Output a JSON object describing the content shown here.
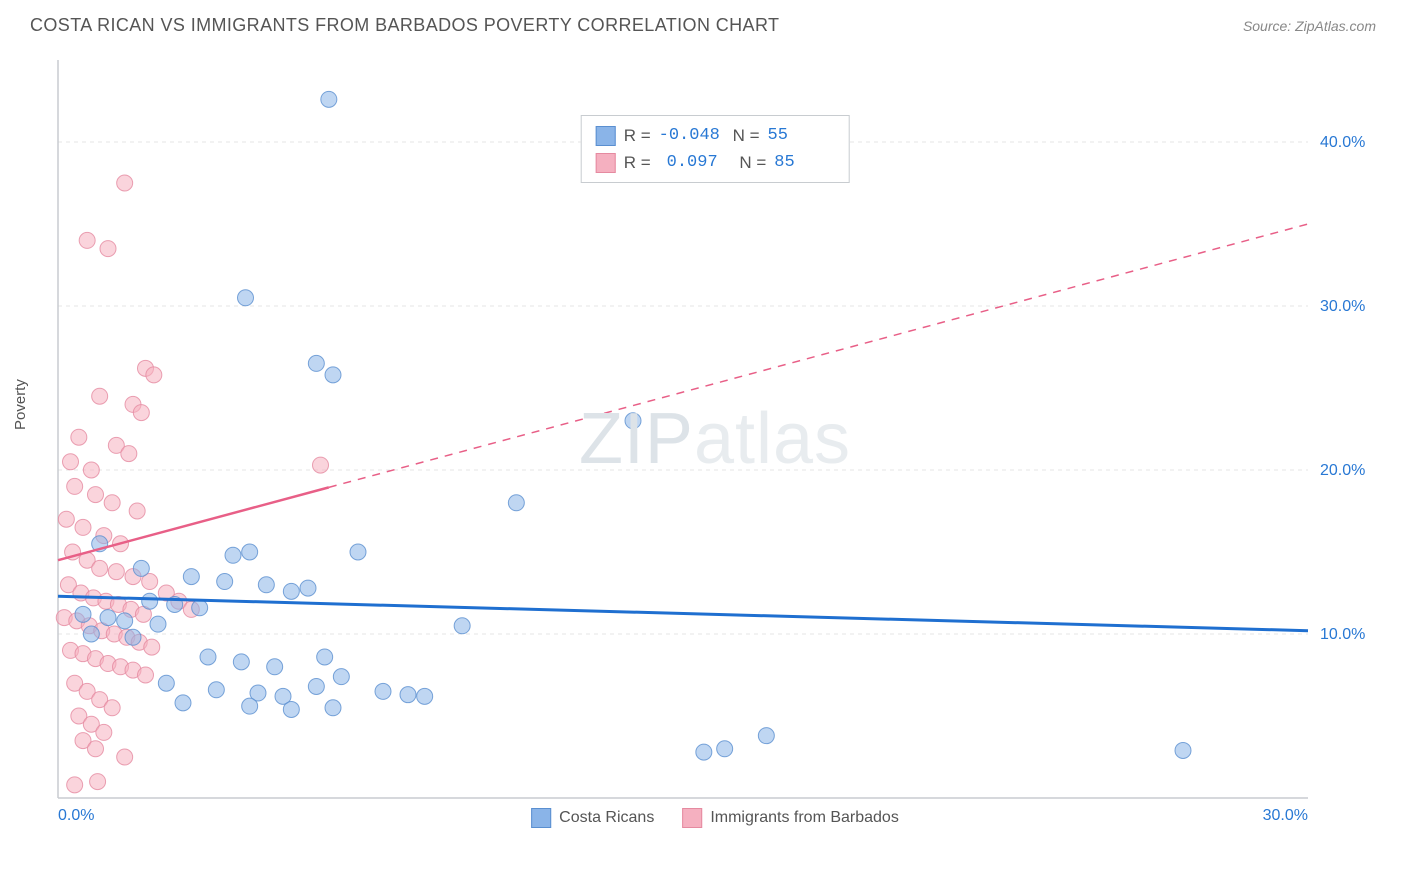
{
  "title": "COSTA RICAN VS IMMIGRANTS FROM BARBADOS POVERTY CORRELATION CHART",
  "source": "Source: ZipAtlas.com",
  "y_axis_label": "Poverty",
  "watermark_a": "ZIP",
  "watermark_b": "atlas",
  "chart": {
    "type": "scatter",
    "xlim": [
      0,
      30
    ],
    "ylim": [
      0,
      45
    ],
    "x_ticks": [
      0,
      30
    ],
    "x_tick_labels": [
      "0.0%",
      "30.0%"
    ],
    "y_ticks": [
      10,
      20,
      30,
      40
    ],
    "y_tick_labels": [
      "10.0%",
      "20.0%",
      "30.0%",
      "40.0%"
    ],
    "background_color": "#ffffff",
    "grid_color": "#e4e4e4",
    "axis_color": "#c8ccd0",
    "tick_label_color": "#2878d4",
    "tick_label_fontsize": 16,
    "marker_radius": 8,
    "marker_opacity": 0.55,
    "series": [
      {
        "name": "Costa Ricans",
        "fill_color": "#8ab4e8",
        "stroke_color": "#5a8fd0",
        "R": "-0.048",
        "N": "55",
        "trend_line": {
          "x1": 0,
          "y1": 12.3,
          "x2": 30,
          "y2": 10.2,
          "color": "#1f6fd0",
          "width": 3,
          "dash_from_x": null
        },
        "points": [
          [
            6.5,
            42.6
          ],
          [
            4.5,
            30.5
          ],
          [
            6.2,
            26.5
          ],
          [
            6.6,
            25.8
          ],
          [
            13.8,
            23.0
          ],
          [
            11.0,
            18.0
          ],
          [
            1.0,
            15.5
          ],
          [
            4.2,
            14.8
          ],
          [
            4.6,
            15.0
          ],
          [
            7.2,
            15.0
          ],
          [
            2.0,
            14.0
          ],
          [
            3.2,
            13.5
          ],
          [
            4.0,
            13.2
          ],
          [
            5.0,
            13.0
          ],
          [
            5.6,
            12.6
          ],
          [
            6.0,
            12.8
          ],
          [
            2.2,
            12.0
          ],
          [
            2.8,
            11.8
          ],
          [
            3.4,
            11.6
          ],
          [
            0.6,
            11.2
          ],
          [
            1.2,
            11.0
          ],
          [
            1.6,
            10.8
          ],
          [
            2.4,
            10.6
          ],
          [
            9.7,
            10.5
          ],
          [
            0.8,
            10.0
          ],
          [
            1.8,
            9.8
          ],
          [
            3.6,
            8.6
          ],
          [
            4.4,
            8.3
          ],
          [
            5.2,
            8.0
          ],
          [
            6.4,
            8.6
          ],
          [
            6.8,
            7.4
          ],
          [
            2.6,
            7.0
          ],
          [
            3.8,
            6.6
          ],
          [
            4.8,
            6.4
          ],
          [
            5.4,
            6.2
          ],
          [
            6.2,
            6.8
          ],
          [
            7.8,
            6.5
          ],
          [
            8.4,
            6.3
          ],
          [
            8.8,
            6.2
          ],
          [
            3.0,
            5.8
          ],
          [
            4.6,
            5.6
          ],
          [
            5.6,
            5.4
          ],
          [
            6.6,
            5.5
          ],
          [
            15.5,
            2.8
          ],
          [
            16.0,
            3.0
          ],
          [
            27.0,
            2.9
          ],
          [
            17.0,
            3.8
          ]
        ]
      },
      {
        "name": "Immigrants from Barbados",
        "fill_color": "#f5b0c0",
        "stroke_color": "#e58aa0",
        "R": "0.097",
        "N": "85",
        "trend_line": {
          "x1": 0,
          "y1": 14.5,
          "x2": 30,
          "y2": 35.0,
          "color": "#e85f87",
          "width": 2.5,
          "dash_from_x": 6.5
        },
        "points": [
          [
            1.6,
            37.5
          ],
          [
            0.7,
            34.0
          ],
          [
            1.2,
            33.5
          ],
          [
            2.1,
            26.2
          ],
          [
            2.3,
            25.8
          ],
          [
            1.0,
            24.5
          ],
          [
            1.8,
            24.0
          ],
          [
            2.0,
            23.5
          ],
          [
            0.5,
            22.0
          ],
          [
            1.4,
            21.5
          ],
          [
            1.7,
            21.0
          ],
          [
            0.3,
            20.5
          ],
          [
            0.8,
            20.0
          ],
          [
            6.3,
            20.3
          ],
          [
            0.4,
            19.0
          ],
          [
            0.9,
            18.5
          ],
          [
            1.3,
            18.0
          ],
          [
            1.9,
            17.5
          ],
          [
            0.2,
            17.0
          ],
          [
            0.6,
            16.5
          ],
          [
            1.1,
            16.0
          ],
          [
            1.5,
            15.5
          ],
          [
            0.35,
            15.0
          ],
          [
            0.7,
            14.5
          ],
          [
            1.0,
            14.0
          ],
          [
            1.4,
            13.8
          ],
          [
            1.8,
            13.5
          ],
          [
            2.2,
            13.2
          ],
          [
            0.25,
            13.0
          ],
          [
            0.55,
            12.5
          ],
          [
            0.85,
            12.2
          ],
          [
            1.15,
            12.0
          ],
          [
            1.45,
            11.8
          ],
          [
            1.75,
            11.5
          ],
          [
            2.05,
            11.2
          ],
          [
            0.15,
            11.0
          ],
          [
            0.45,
            10.8
          ],
          [
            2.6,
            12.5
          ],
          [
            2.9,
            12.0
          ],
          [
            3.2,
            11.5
          ],
          [
            0.75,
            10.5
          ],
          [
            1.05,
            10.2
          ],
          [
            1.35,
            10.0
          ],
          [
            1.65,
            9.8
          ],
          [
            1.95,
            9.5
          ],
          [
            2.25,
            9.2
          ],
          [
            0.3,
            9.0
          ],
          [
            0.6,
            8.8
          ],
          [
            0.9,
            8.5
          ],
          [
            1.2,
            8.2
          ],
          [
            1.5,
            8.0
          ],
          [
            1.8,
            7.8
          ],
          [
            2.1,
            7.5
          ],
          [
            0.4,
            7.0
          ],
          [
            0.7,
            6.5
          ],
          [
            1.0,
            6.0
          ],
          [
            1.3,
            5.5
          ],
          [
            0.5,
            5.0
          ],
          [
            0.8,
            4.5
          ],
          [
            1.1,
            4.0
          ],
          [
            0.6,
            3.5
          ],
          [
            0.9,
            3.0
          ],
          [
            1.6,
            2.5
          ],
          [
            0.95,
            1.0
          ],
          [
            0.4,
            0.8
          ]
        ]
      }
    ],
    "legend_bottom": [
      {
        "label": "Costa Ricans",
        "fill": "#8ab4e8",
        "stroke": "#5a8fd0"
      },
      {
        "label": "Immigrants from Barbados",
        "fill": "#f5b0c0",
        "stroke": "#e58aa0"
      }
    ]
  }
}
